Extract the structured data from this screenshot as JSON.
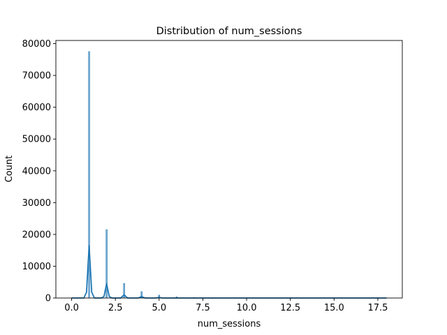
{
  "chart_data": {
    "type": "histogram",
    "title": "Distribution of num_sessions",
    "xlabel": "num_sessions",
    "ylabel": "Count",
    "xlim": [
      -0.9,
      18.9
    ],
    "ylim": [
      0,
      81000
    ],
    "grid": false,
    "x_ticks": [
      0.0,
      2.5,
      5.0,
      7.5,
      10.0,
      12.5,
      15.0,
      17.5
    ],
    "x_tick_labels": [
      "0.0",
      "2.5",
      "5.0",
      "7.5",
      "10.0",
      "12.5",
      "15.0",
      "17.5"
    ],
    "y_ticks": [
      0,
      10000,
      20000,
      30000,
      40000,
      50000,
      60000,
      70000,
      80000
    ],
    "y_tick_labels": [
      "0",
      "10000",
      "20000",
      "30000",
      "40000",
      "50000",
      "60000",
      "70000",
      "80000"
    ],
    "bar_color": "#1f77b4",
    "kde_color": "#1f77b4",
    "bars": [
      {
        "x": 1,
        "count": 77500
      },
      {
        "x": 2,
        "count": 21500
      },
      {
        "x": 3,
        "count": 4600
      },
      {
        "x": 4,
        "count": 2000
      },
      {
        "x": 5,
        "count": 900
      },
      {
        "x": 6,
        "count": 350
      },
      {
        "x": 7,
        "count": 150
      },
      {
        "x": 8,
        "count": 70
      },
      {
        "x": 9,
        "count": 30
      },
      {
        "x": 10,
        "count": 15
      },
      {
        "x": 18,
        "count": 2
      }
    ],
    "kde": {
      "x": [
        0,
        0.7,
        0.85,
        1.0,
        1.15,
        1.3,
        1.7,
        1.85,
        2.0,
        2.15,
        2.3,
        2.8,
        3.0,
        3.2,
        3.8,
        4.0,
        4.2,
        4.8,
        5.0,
        5.2,
        6.0,
        18.0
      ],
      "y": [
        0,
        0,
        1800,
        16400,
        1800,
        0,
        0,
        500,
        4500,
        500,
        0,
        0,
        1000,
        0,
        0,
        450,
        0,
        0,
        200,
        0,
        0,
        0
      ]
    }
  }
}
